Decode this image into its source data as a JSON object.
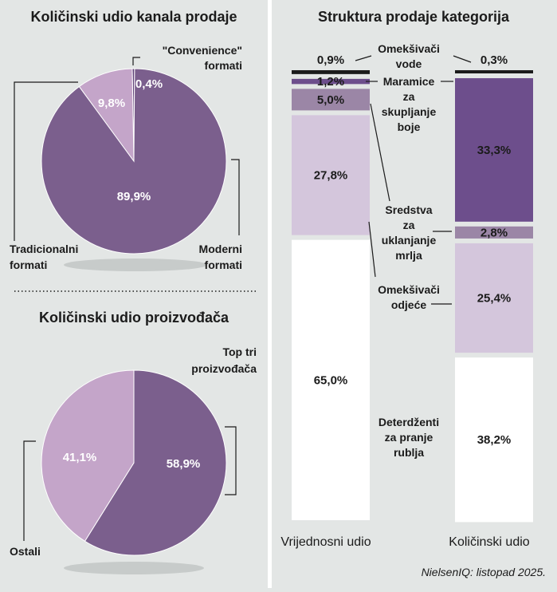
{
  "colors": {
    "dark_purple": "#7b5f8d",
    "light_purple": "#c4a5c9",
    "deep_purple": "#6d4e8c",
    "lavender": "#d4c6dc",
    "mid_mauve": "#9b86a6",
    "black": "#1b1b1b",
    "white": "#ffffff",
    "background": "#e3e6e5"
  },
  "chart_data": [
    {
      "type": "pie",
      "title": "Količinski udio kanala prodaje",
      "slices": [
        {
          "label": "Moderni formati",
          "value": 89.9,
          "display": "89,9%",
          "color": "#7b5f8d"
        },
        {
          "label": "Tradicionalni formati",
          "value": 9.8,
          "display": "9,8%",
          "color": "#c4a5c9"
        },
        {
          "label": "\"Convenience\" formati",
          "value": 0.4,
          "display": "0,4%",
          "color": "#5e3f76"
        }
      ],
      "labels": {
        "moderni": [
          "Moderni",
          "formati"
        ],
        "tradicionalni": [
          "Tradicionalni",
          "formati"
        ],
        "convenience": [
          "\"Convenience\"",
          "formati"
        ]
      }
    },
    {
      "type": "pie",
      "title": "Količinski udio proizvođača",
      "slices": [
        {
          "label": "Top tri proizvođača",
          "value": 58.9,
          "display": "58,9%",
          "color": "#7b5f8d"
        },
        {
          "label": "Ostali",
          "value": 41.1,
          "display": "41,1%",
          "color": "#c4a5c9"
        }
      ],
      "labels": {
        "top": [
          "Top tri",
          "proizvođača"
        ],
        "ostali": [
          "Ostali"
        ]
      }
    },
    {
      "type": "bar",
      "subtype": "stacked-100",
      "title": "Struktura prodaje kategorija",
      "categories": [
        "Vrijednosni udio",
        "Količinski udio"
      ],
      "series": [
        {
          "name": "Deterdženti za pranje rublja",
          "label_lines": [
            "Deterdženti",
            "za pranje",
            "rublja"
          ],
          "values": [
            65.0,
            38.2
          ],
          "display": [
            "65,0%",
            "38,2%"
          ],
          "color": "#ffffff"
        },
        {
          "name": "Omekšivači odjeće",
          "label_lines": [
            "Omekšivači",
            "odjeće"
          ],
          "values": [
            27.8,
            25.4
          ],
          "display": [
            "27,8%",
            "25,4%"
          ],
          "color": "#d4c6dc"
        },
        {
          "name": "Sredstva za uklanjanje mrlja",
          "label_lines": [
            "Sredstva",
            "za",
            "uklanjanje",
            "mrlja"
          ],
          "values": [
            5.0,
            2.8
          ],
          "display": [
            "5,0%",
            "2,8%"
          ],
          "color": "#9b86a6"
        },
        {
          "name": "Maramice za skupljanje boje",
          "label_lines": [
            "Maramice",
            "za",
            "skupljanje",
            "boje"
          ],
          "values": [
            1.2,
            33.3
          ],
          "display": [
            "1,2%",
            "33,3%"
          ],
          "color": "#6d4e8c"
        },
        {
          "name": "Omekšivači vode",
          "label_lines": [
            "Omekšivači",
            "vode"
          ],
          "values": [
            0.9,
            0.3
          ],
          "display": [
            "0,9%",
            "0,3%"
          ],
          "color": "#1b1b1b"
        }
      ]
    }
  ],
  "source": "NielsenIQ: listopad 2025."
}
